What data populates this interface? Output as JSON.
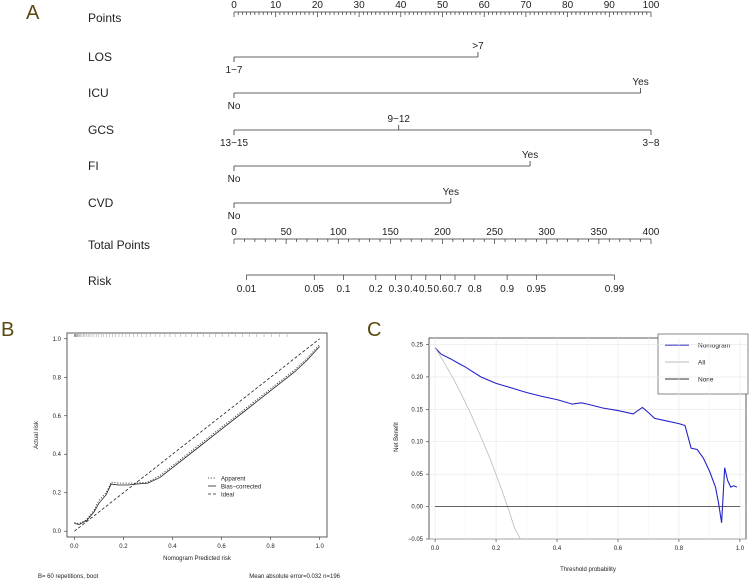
{
  "panels": {
    "a": "A",
    "b": "B",
    "c": "C"
  },
  "chart_data": [
    {
      "type": "nomogram",
      "panel": "A",
      "rows": [
        {
          "name": "Points",
          "kind": "axis",
          "min": 0,
          "max": 100,
          "ticks": [
            0,
            10,
            20,
            30,
            40,
            50,
            60,
            70,
            80,
            90,
            100
          ]
        },
        {
          "name": "LOS",
          "kind": "predictor",
          "levels": [
            {
              "label": "1−7",
              "points": 0,
              "side": "below"
            },
            {
              "label": ">7",
              "points": 58.5,
              "side": "above"
            }
          ]
        },
        {
          "name": "ICU",
          "kind": "predictor",
          "levels": [
            {
              "label": "No",
              "points": 0,
              "side": "below"
            },
            {
              "label": "Yes",
              "points": 97.5,
              "side": "above"
            }
          ]
        },
        {
          "name": "GCS",
          "kind": "predictor",
          "levels": [
            {
              "label": "13−15",
              "points": 0,
              "side": "below"
            },
            {
              "label": "9−12",
              "points": 39.5,
              "side": "above"
            },
            {
              "label": "3−8",
              "points": 100,
              "side": "below"
            }
          ]
        },
        {
          "name": "FI",
          "kind": "predictor",
          "levels": [
            {
              "label": "No",
              "points": 0,
              "side": "below"
            },
            {
              "label": "Yes",
              "points": 71,
              "side": "above"
            }
          ]
        },
        {
          "name": "CVD",
          "kind": "predictor",
          "levels": [
            {
              "label": "No",
              "points": 0,
              "side": "below"
            },
            {
              "label": "Yes",
              "points": 52,
              "side": "above"
            }
          ]
        },
        {
          "name": "Total Points",
          "kind": "axis",
          "min": 0,
          "max": 400,
          "ticks": [
            0,
            50,
            100,
            150,
            200,
            250,
            300,
            350,
            400
          ]
        },
        {
          "name": "Risk",
          "kind": "risk",
          "ticks": [
            {
              "label": "0.01",
              "total": 12
            },
            {
              "label": "0.05",
              "total": 77
            },
            {
              "label": "0.1",
              "total": 105
            },
            {
              "label": "0.2",
              "total": 136
            },
            {
              "label": "0.3",
              "total": 155
            },
            {
              "label": "0.4",
              "total": 170
            },
            {
              "label": "0.5",
              "total": 184
            },
            {
              "label": "0.6",
              "total": 198
            },
            {
              "label": "0.7",
              "total": 212
            },
            {
              "label": "0.8",
              "total": 231
            },
            {
              "label": "0.9",
              "total": 262
            },
            {
              "label": "0.95",
              "total": 290
            },
            {
              "label": "0.99",
              "total": 365
            }
          ]
        }
      ]
    },
    {
      "type": "line",
      "panel": "B",
      "title": "",
      "xlabel": "Nomogram Predicted risk",
      "ylabel": "Actual risk",
      "xlim": [
        -0.03,
        1.03
      ],
      "ylim": [
        -0.03,
        1.03
      ],
      "xticks": [
        0.0,
        0.2,
        0.4,
        0.6,
        0.8,
        1.0
      ],
      "yticks": [
        0.0,
        0.2,
        0.4,
        0.6,
        0.8,
        1.0
      ],
      "xtick_labels": [
        "0.0",
        "0.2",
        "0.4",
        "0.6",
        "0.8",
        "1.0"
      ],
      "ytick_labels": [
        "0.0",
        "0.2",
        "0.4",
        "0.6",
        "0.8",
        "1.0"
      ],
      "legend": [
        "Apparent",
        "Bias−corrected",
        "Ideal"
      ],
      "legend_position": "bottom-right",
      "footnote_left": "B= 60 repetitions, boot",
      "footnote_right": "Mean absolute error=0.032 n=196",
      "series": [
        {
          "name": "Apparent",
          "style": "dotted",
          "x": [
            0.0,
            0.02,
            0.05,
            0.08,
            0.1,
            0.13,
            0.15,
            0.18,
            0.22,
            0.25,
            0.3,
            0.35,
            0.4,
            0.5,
            0.6,
            0.7,
            0.8,
            0.9,
            0.95,
            1.0
          ],
          "y": [
            0.045,
            0.04,
            0.06,
            0.11,
            0.16,
            0.2,
            0.255,
            0.25,
            0.25,
            0.25,
            0.255,
            0.29,
            0.34,
            0.44,
            0.54,
            0.64,
            0.74,
            0.84,
            0.9,
            0.97
          ]
        },
        {
          "name": "Bias−corrected",
          "style": "solid",
          "x": [
            0.0,
            0.02,
            0.05,
            0.08,
            0.1,
            0.13,
            0.15,
            0.18,
            0.22,
            0.25,
            0.3,
            0.35,
            0.4,
            0.5,
            0.6,
            0.7,
            0.8,
            0.9,
            0.95,
            1.0
          ],
          "y": [
            0.04,
            0.035,
            0.055,
            0.1,
            0.145,
            0.19,
            0.245,
            0.24,
            0.24,
            0.245,
            0.25,
            0.28,
            0.33,
            0.43,
            0.53,
            0.63,
            0.73,
            0.83,
            0.89,
            0.96
          ]
        },
        {
          "name": "Ideal",
          "style": "dashed",
          "x": [
            0.0,
            1.0
          ],
          "y": [
            0.0,
            1.0
          ]
        }
      ]
    },
    {
      "type": "line",
      "panel": "C",
      "title": "",
      "xlabel": "Threshold probability",
      "ylabel": "Net Benefit",
      "xlim": [
        -0.02,
        1.02
      ],
      "ylim": [
        -0.05,
        0.26
      ],
      "xticks": [
        0.0,
        0.2,
        0.4,
        0.6,
        0.8,
        1.0
      ],
      "yticks": [
        -0.05,
        0.0,
        0.05,
        0.1,
        0.15,
        0.2,
        0.25
      ],
      "xtick_labels": [
        "0.0",
        "0.2",
        "0.4",
        "0.6",
        "0.8",
        "1.0"
      ],
      "ytick_labels": [
        "−0.05",
        "0.00",
        "0.05",
        "0.10",
        "0.15",
        "0.20",
        "0.25"
      ],
      "grid": true,
      "legend": [
        "Nomogram",
        "All",
        "None"
      ],
      "legend_position": "top-right",
      "series": [
        {
          "name": "Nomogram",
          "color": "#2323c8",
          "x": [
            0.0,
            0.02,
            0.05,
            0.08,
            0.1,
            0.15,
            0.2,
            0.25,
            0.3,
            0.35,
            0.4,
            0.45,
            0.48,
            0.5,
            0.55,
            0.6,
            0.65,
            0.68,
            0.7,
            0.72,
            0.75,
            0.8,
            0.82,
            0.84,
            0.86,
            0.88,
            0.9,
            0.92,
            0.93,
            0.94,
            0.95,
            0.96,
            0.97,
            0.98,
            0.99
          ],
          "y": [
            0.245,
            0.235,
            0.228,
            0.22,
            0.215,
            0.2,
            0.19,
            0.183,
            0.176,
            0.17,
            0.165,
            0.158,
            0.16,
            0.158,
            0.152,
            0.148,
            0.143,
            0.153,
            0.145,
            0.136,
            0.133,
            0.128,
            0.125,
            0.09,
            0.088,
            0.075,
            0.055,
            0.03,
            0.005,
            -0.025,
            0.06,
            0.04,
            0.03,
            0.032,
            0.03
          ]
        },
        {
          "name": "All",
          "color": "#bbbbbb",
          "x": [
            0.0,
            0.03,
            0.06,
            0.09,
            0.12,
            0.15,
            0.18,
            0.21,
            0.24,
            0.26,
            0.28
          ],
          "y": [
            0.245,
            0.222,
            0.197,
            0.17,
            0.14,
            0.108,
            0.074,
            0.037,
            -0.003,
            -0.032,
            -0.05
          ]
        },
        {
          "name": "None",
          "color": "#333333",
          "x": [
            0.0,
            1.0
          ],
          "y": [
            0.0,
            0.0
          ]
        }
      ]
    }
  ]
}
